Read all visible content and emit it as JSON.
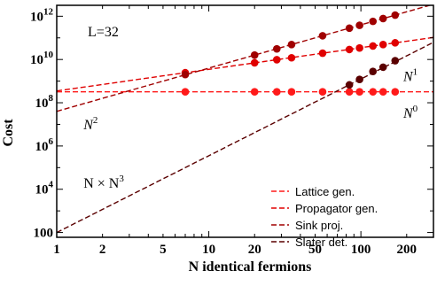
{
  "chart_data": {
    "type": "line",
    "title": "",
    "xlabel": "N identical fermions",
    "ylabel": "Cost",
    "xscale": "log",
    "yscale": "log",
    "xlim": [
      1,
      300
    ],
    "ylim": [
      60,
      3200000000000.0
    ],
    "x_ticks": [
      {
        "v": 1,
        "label": "1"
      },
      {
        "v": 2,
        "label": "2"
      },
      {
        "v": 5,
        "label": "5"
      },
      {
        "v": 10,
        "label": "10"
      },
      {
        "v": 20,
        "label": "20"
      },
      {
        "v": 50,
        "label": "50"
      },
      {
        "v": 100,
        "label": "100"
      },
      {
        "v": 200,
        "label": "200"
      }
    ],
    "y_ticks": [
      {
        "v": 100,
        "base": "100",
        "exp": ""
      },
      {
        "v": 10000.0,
        "base": "10",
        "exp": "4"
      },
      {
        "v": 1000000.0,
        "base": "10",
        "exp": "6"
      },
      {
        "v": 100000000.0,
        "base": "10",
        "exp": "8"
      },
      {
        "v": 10000000000.0,
        "base": "10",
        "exp": "10"
      },
      {
        "v": 1000000000000.0,
        "base": "10",
        "exp": "12"
      }
    ],
    "legend_position": "bottom-right",
    "series": [
      {
        "name": "Lattice gen.",
        "color": "#ff1a1a",
        "line": {
          "type": "power",
          "c": 320000000.0,
          "p": 0
        },
        "x": [
          7,
          20,
          28,
          35,
          56,
          84,
          98,
          120,
          140,
          168
        ],
        "y": [
          320000000.0,
          320000000.0,
          320000000.0,
          320000000.0,
          320000000.0,
          320000000.0,
          320000000.0,
          320000000.0,
          320000000.0,
          320000000.0
        ]
      },
      {
        "name": "Propagator gen.",
        "color": "#e00000",
        "line": {
          "type": "power",
          "c": 350000000.0,
          "p": 1
        },
        "x": [
          7,
          20,
          28,
          35,
          56,
          84,
          98,
          120,
          140,
          168
        ],
        "y": [
          2450000000.0,
          7000000000.0,
          9800000000.0,
          12000000000.0,
          19600000000.0,
          29000000000.0,
          34000000000.0,
          42000000000.0,
          49000000000.0,
          59000000000.0
        ]
      },
      {
        "name": "Sink proj.",
        "color": "#a00000",
        "line": {
          "type": "power",
          "c": 40000000.0,
          "p": 2
        },
        "x": [
          7,
          20,
          28,
          35,
          56,
          84,
          98,
          120,
          140,
          168
        ],
        "y": [
          2000000000.0,
          16000000000.0,
          31000000000.0,
          49000000000.0,
          125000000000.0,
          280000000000.0,
          380000000000.0,
          580000000000.0,
          780000000000.0,
          1130000000000.0
        ]
      },
      {
        "name": "Slater det.",
        "color": "#5a0000",
        "line": {
          "type": "power",
          "c": 100,
          "p": 3.55
        },
        "x": [
          84,
          98,
          120,
          140,
          168
        ],
        "y": [
          670000000.0,
          1200000000.0,
          2800000000.0,
          4400000000.0,
          8800000000.0
        ]
      }
    ],
    "annotations": [
      {
        "text": "L=32",
        "x": 1.6,
        "y": 120000000000.0
      },
      {
        "text": "N",
        "sup": "1",
        "x": 190,
        "y": 1000000000.0
      },
      {
        "text": "N",
        "sup": "0",
        "x": 190,
        "y": 20000000.0
      },
      {
        "text": "N",
        "sup": "2",
        "x": 1.5,
        "y": 6000000.0
      },
      {
        "text": "N × N",
        "sup": "3",
        "x": 1.5,
        "y": 12000.0
      }
    ]
  }
}
